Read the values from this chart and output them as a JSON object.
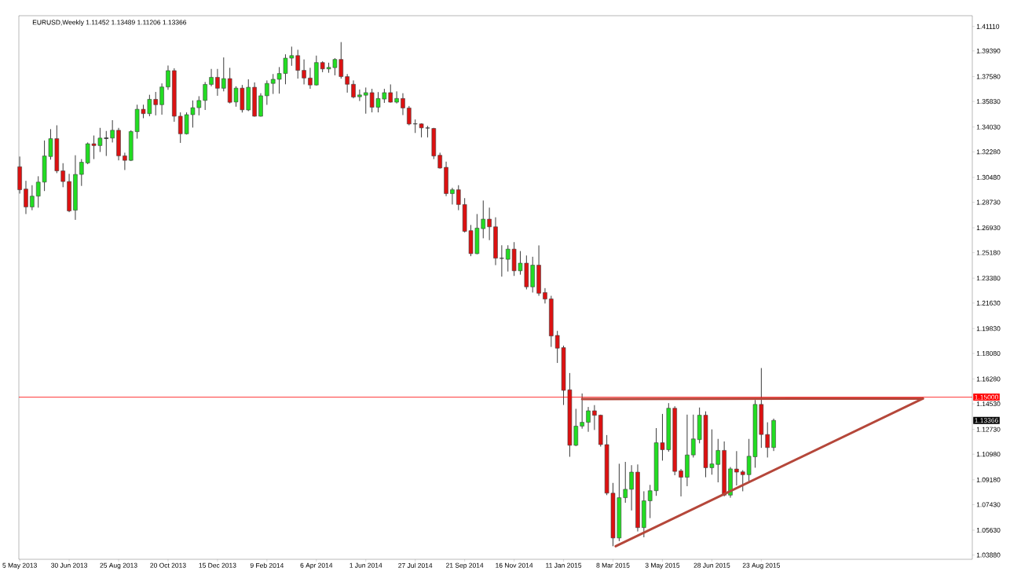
{
  "chart_data": {
    "type": "candlestick",
    "title": "EURUSD,Weekly 1.11452 1.13489 1.11206 1.13366",
    "x": [
      "2013-05-05",
      "2013-05-12",
      "2013-05-19",
      "2013-05-26",
      "2013-06-02",
      "2013-06-09",
      "2013-06-16",
      "2013-06-23",
      "2013-06-30",
      "2013-07-07",
      "2013-07-14",
      "2013-07-21",
      "2013-07-28",
      "2013-08-04",
      "2013-08-11",
      "2013-08-18",
      "2013-08-25",
      "2013-09-01",
      "2013-09-08",
      "2013-09-15",
      "2013-09-22",
      "2013-09-29",
      "2013-10-06",
      "2013-10-13",
      "2013-10-20",
      "2013-10-27",
      "2013-11-03",
      "2013-11-10",
      "2013-11-17",
      "2013-11-24",
      "2013-12-01",
      "2013-12-08",
      "2013-12-15",
      "2013-12-22",
      "2013-12-29",
      "2014-01-05",
      "2014-01-12",
      "2014-01-19",
      "2014-01-26",
      "2014-02-02",
      "2014-02-09",
      "2014-02-16",
      "2014-02-23",
      "2014-03-02",
      "2014-03-09",
      "2014-03-16",
      "2014-03-23",
      "2014-03-30",
      "2014-04-06",
      "2014-04-13",
      "2014-04-20",
      "2014-04-27",
      "2014-05-04",
      "2014-05-11",
      "2014-05-18",
      "2014-05-25",
      "2014-06-01",
      "2014-06-08",
      "2014-06-15",
      "2014-06-22",
      "2014-06-29",
      "2014-07-06",
      "2014-07-13",
      "2014-07-20",
      "2014-07-27",
      "2014-08-03",
      "2014-08-10",
      "2014-08-17",
      "2014-08-24",
      "2014-08-31",
      "2014-09-07",
      "2014-09-14",
      "2014-09-21",
      "2014-09-28",
      "2014-10-05",
      "2014-10-12",
      "2014-10-19",
      "2014-10-26",
      "2014-11-02",
      "2014-11-09",
      "2014-11-16",
      "2014-11-23",
      "2014-11-30",
      "2014-12-07",
      "2014-12-14",
      "2014-12-21",
      "2014-12-28",
      "2015-01-04",
      "2015-01-11",
      "2015-01-18",
      "2015-01-25",
      "2015-02-01",
      "2015-02-08",
      "2015-02-15",
      "2015-02-22",
      "2015-03-01",
      "2015-03-08",
      "2015-03-15",
      "2015-03-22",
      "2015-03-29",
      "2015-04-05",
      "2015-04-12",
      "2015-04-19",
      "2015-04-26",
      "2015-05-03",
      "2015-05-10",
      "2015-05-17",
      "2015-05-24",
      "2015-05-31",
      "2015-06-07",
      "2015-06-14",
      "2015-06-21",
      "2015-06-28",
      "2015-07-05",
      "2015-07-12",
      "2015-07-19",
      "2015-07-26",
      "2015-08-02",
      "2015-08-09",
      "2015-08-16",
      "2015-08-23",
      "2015-08-30",
      "2015-09-06"
    ],
    "ohlc": [
      [
        1.3123,
        1.3195,
        1.2934,
        1.2961
      ],
      [
        1.2966,
        1.3024,
        1.279,
        1.284
      ],
      [
        1.284,
        1.2993,
        1.2817,
        1.2916
      ],
      [
        1.2916,
        1.3056,
        1.2835,
        1.3015
      ],
      [
        1.3015,
        1.3308,
        1.2952,
        1.3199
      ],
      [
        1.3195,
        1.3388,
        1.3173,
        1.3321
      ],
      [
        1.3321,
        1.3415,
        1.3078,
        1.3094
      ],
      [
        1.3094,
        1.3148,
        1.2979,
        1.3019
      ],
      [
        1.3019,
        1.3073,
        1.2803,
        1.2812
      ],
      [
        1.2817,
        1.3204,
        1.2749,
        1.3069
      ],
      [
        1.3069,
        1.3177,
        1.2988,
        1.3155
      ],
      [
        1.315,
        1.3294,
        1.3141,
        1.3285
      ],
      [
        1.3285,
        1.3343,
        1.3177,
        1.3272
      ],
      [
        1.3272,
        1.3397,
        1.3227,
        1.3325
      ],
      [
        1.3327,
        1.3375,
        1.3199,
        1.3321
      ],
      [
        1.3325,
        1.3451,
        1.3294,
        1.338
      ],
      [
        1.338,
        1.3397,
        1.3168,
        1.32
      ],
      [
        1.32,
        1.3222,
        1.31,
        1.3168
      ],
      [
        1.3168,
        1.338,
        1.3163,
        1.3371
      ],
      [
        1.337,
        1.356,
        1.3321,
        1.3528
      ],
      [
        1.3528,
        1.356,
        1.3465,
        1.3497
      ],
      [
        1.3497,
        1.363,
        1.3479,
        1.3598
      ],
      [
        1.3598,
        1.365,
        1.3485,
        1.356
      ],
      [
        1.356,
        1.371,
        1.349,
        1.3685
      ],
      [
        1.3685,
        1.3836,
        1.3665,
        1.38
      ],
      [
        1.38,
        1.3817,
        1.344,
        1.3479
      ],
      [
        1.3479,
        1.3506,
        1.3291,
        1.3355
      ],
      [
        1.3355,
        1.3506,
        1.335,
        1.349
      ],
      [
        1.349,
        1.359,
        1.3399,
        1.3539
      ],
      [
        1.3539,
        1.362,
        1.3485,
        1.359
      ],
      [
        1.359,
        1.372,
        1.3523,
        1.3703
      ],
      [
        1.3703,
        1.3812,
        1.369,
        1.3753
      ],
      [
        1.3753,
        1.3812,
        1.3623,
        1.3676
      ],
      [
        1.3676,
        1.3893,
        1.3654,
        1.3744
      ],
      [
        1.3744,
        1.382,
        1.3569,
        1.3577
      ],
      [
        1.3579,
        1.369,
        1.3546,
        1.3677
      ],
      [
        1.3677,
        1.3699,
        1.3505,
        1.3524
      ],
      [
        1.3523,
        1.3739,
        1.3515,
        1.3683
      ],
      [
        1.3683,
        1.3717,
        1.3476,
        1.3479
      ],
      [
        1.3479,
        1.3641,
        1.3476,
        1.3623
      ],
      [
        1.3623,
        1.3731,
        1.3559,
        1.371
      ],
      [
        1.371,
        1.3776,
        1.3636,
        1.3739
      ],
      [
        1.3739,
        1.3825,
        1.3638,
        1.378
      ],
      [
        1.378,
        1.3915,
        1.3704,
        1.3888
      ],
      [
        1.3888,
        1.3969,
        1.3834,
        1.3906
      ],
      [
        1.3906,
        1.3947,
        1.3744,
        1.3802
      ],
      [
        1.3802,
        1.3879,
        1.3703,
        1.3748
      ],
      [
        1.3748,
        1.382,
        1.3672,
        1.3699
      ],
      [
        1.3699,
        1.3906,
        1.3695,
        1.3857
      ],
      [
        1.3857,
        1.3866,
        1.3789,
        1.3812
      ],
      [
        1.3812,
        1.3856,
        1.3785,
        1.3823
      ],
      [
        1.3821,
        1.3888,
        1.3767,
        1.3879
      ],
      [
        1.3879,
        1.4001,
        1.3744,
        1.3758
      ],
      [
        1.3758,
        1.3776,
        1.3645,
        1.3704
      ],
      [
        1.3704,
        1.3731,
        1.3605,
        1.3614
      ],
      [
        1.3616,
        1.3667,
        1.3586,
        1.3629
      ],
      [
        1.3627,
        1.3681,
        1.3497,
        1.3645
      ],
      [
        1.3645,
        1.3672,
        1.3506,
        1.3542
      ],
      [
        1.3542,
        1.3649,
        1.3506,
        1.3604
      ],
      [
        1.36,
        1.3672,
        1.3573,
        1.3645
      ],
      [
        1.3645,
        1.3703,
        1.3575,
        1.3578
      ],
      [
        1.3578,
        1.3654,
        1.3569,
        1.3604
      ],
      [
        1.3604,
        1.3641,
        1.3487,
        1.3537
      ],
      [
        1.3537,
        1.3551,
        1.3415,
        1.3424
      ],
      [
        1.3424,
        1.3456,
        1.3361,
        1.3426
      ],
      [
        1.3425,
        1.3429,
        1.333,
        1.3397
      ],
      [
        1.3397,
        1.3411,
        1.333,
        1.3395
      ],
      [
        1.3393,
        1.3397,
        1.3177,
        1.3199
      ],
      [
        1.3204,
        1.3222,
        1.311,
        1.3114
      ],
      [
        1.3119,
        1.3159,
        1.2916,
        1.2934
      ],
      [
        1.2934,
        1.2975,
        1.2857,
        1.2961
      ],
      [
        1.2961,
        1.2993,
        1.2817,
        1.2857
      ],
      [
        1.2857,
        1.2902,
        1.266,
        1.2668
      ],
      [
        1.2673,
        1.2713,
        1.2493,
        1.2511
      ],
      [
        1.2511,
        1.279,
        1.2507,
        1.2691
      ],
      [
        1.2687,
        1.2885,
        1.2619,
        1.2754
      ],
      [
        1.2754,
        1.2835,
        1.2606,
        1.27
      ],
      [
        1.27,
        1.2767,
        1.243,
        1.2479
      ],
      [
        1.2479,
        1.257,
        1.2349,
        1.2477
      ],
      [
        1.2471,
        1.257,
        1.2385,
        1.2543
      ],
      [
        1.2543,
        1.2592,
        1.2354,
        1.239
      ],
      [
        1.239,
        1.2529,
        1.2363,
        1.2444
      ],
      [
        1.2444,
        1.2498,
        1.2259,
        1.2277
      ],
      [
        1.2277,
        1.2489,
        1.2237,
        1.243
      ],
      [
        1.243,
        1.2569,
        1.2214,
        1.2232
      ],
      [
        1.2237,
        1.2268,
        1.216,
        1.2191
      ],
      [
        1.2192,
        1.2214,
        1.1854,
        1.1931
      ],
      [
        1.1935,
        1.1967,
        1.1741,
        1.1845
      ],
      [
        1.1849,
        1.1863,
        1.1445,
        1.1548
      ],
      [
        1.1552,
        1.167,
        1.108,
        1.1161
      ],
      [
        1.1161,
        1.1418,
        1.1155,
        1.1296
      ],
      [
        1.1296,
        1.1526,
        1.1278,
        1.1323
      ],
      [
        1.1323,
        1.1431,
        1.1256,
        1.1404
      ],
      [
        1.1404,
        1.1444,
        1.1269,
        1.1372
      ],
      [
        1.1373,
        1.1377,
        1.1152,
        1.1166
      ],
      [
        1.1166,
        1.1233,
        1.081,
        1.0824
      ],
      [
        1.0824,
        1.0896,
        1.045,
        1.0508
      ],
      [
        1.0508,
        1.1031,
        1.0486,
        1.0792
      ],
      [
        1.0792,
        1.1044,
        1.0756,
        1.0851
      ],
      [
        1.0851,
        1.1021,
        1.0702,
        1.0972
      ],
      [
        1.0972,
        1.1026,
        1.0554,
        1.0581
      ],
      [
        1.0581,
        1.0837,
        1.0513,
        1.077
      ],
      [
        1.077,
        1.0882,
        1.0648,
        1.0841
      ],
      [
        1.0841,
        1.1282,
        1.0805,
        1.1179
      ],
      [
        1.1179,
        1.1382,
        1.1053,
        1.113
      ],
      [
        1.113,
        1.1458,
        1.1116,
        1.1422
      ],
      [
        1.1422,
        1.1436,
        1.095,
        1.0977
      ],
      [
        1.0981,
        1.0994,
        1.0801,
        1.0936
      ],
      [
        1.0936,
        1.1377,
        1.0873,
        1.1093
      ],
      [
        1.1093,
        1.1377,
        1.1075,
        1.1206
      ],
      [
        1.1201,
        1.1427,
        1.1175,
        1.1373
      ],
      [
        1.1373,
        1.14,
        1.0936,
        1.1003
      ],
      [
        1.1003,
        1.1273,
        1.0954,
        1.103
      ],
      [
        1.1026,
        1.1206,
        1.09,
        1.1125
      ],
      [
        1.1125,
        1.1188,
        1.0801,
        1.081
      ],
      [
        1.081,
        1.1008,
        1.0792,
        1.0995
      ],
      [
        1.0994,
        1.112,
        1.0878,
        1.0972
      ],
      [
        1.0974,
        1.0986,
        1.0837,
        1.0954
      ],
      [
        1.0954,
        1.1206,
        1.0905,
        1.1084
      ],
      [
        1.108,
        1.148,
        1.1003,
        1.1449
      ],
      [
        1.1449,
        1.1705,
        1.1143,
        1.1237
      ],
      [
        1.1237,
        1.1323,
        1.1075,
        1.1145
      ],
      [
        1.11452,
        1.13489,
        1.11206,
        1.13366
      ]
    ],
    "colors": [
      "#dd1111",
      "#dd1111",
      "#22dd22",
      "#22dd22",
      "#22dd22",
      "#22dd22",
      "#dd1111",
      "#dd1111",
      "#dd1111",
      "#22dd22",
      "#22dd22",
      "#22dd22",
      "#dd1111",
      "#22dd22",
      "#000000",
      "#22dd22",
      "#dd1111",
      "#dd1111",
      "#22dd22",
      "#22dd22",
      "#dd1111",
      "#22dd22",
      "#dd1111",
      "#22dd22",
      "#22dd22",
      "#dd1111",
      "#dd1111",
      "#22dd22",
      "#22dd22",
      "#22dd22",
      "#22dd22",
      "#22dd22",
      "#dd1111",
      "#22dd22",
      "#dd1111",
      "#22dd22",
      "#dd1111",
      "#22dd22",
      "#dd1111",
      "#22dd22",
      "#22dd22",
      "#22dd22",
      "#22dd22",
      "#22dd22",
      "#22dd22",
      "#dd1111",
      "#dd1111",
      "#dd1111",
      "#22dd22",
      "#dd1111",
      "#22dd22",
      "#22dd22",
      "#dd1111",
      "#dd1111",
      "#dd1111",
      "#22dd22",
      "#22dd22",
      "#dd1111",
      "#22dd22",
      "#22dd22",
      "#dd1111",
      "#22dd22",
      "#dd1111",
      "#dd1111",
      "#000000",
      "#dd1111",
      "#000000",
      "#dd1111",
      "#dd1111",
      "#dd1111",
      "#22dd22",
      "#dd1111",
      "#dd1111",
      "#dd1111",
      "#22dd22",
      "#22dd22",
      "#dd1111",
      "#dd1111",
      "#000000",
      "#22dd22",
      "#dd1111",
      "#22dd22",
      "#dd1111",
      "#22dd22",
      "#dd1111",
      "#dd1111",
      "#dd1111",
      "#dd1111",
      "#dd1111",
      "#dd1111",
      "#22dd22",
      "#22dd22",
      "#22dd22",
      "#dd1111",
      "#dd1111",
      "#dd1111",
      "#dd1111",
      "#22dd22",
      "#22dd22",
      "#22dd22",
      "#dd1111",
      "#22dd22",
      "#22dd22",
      "#22dd22",
      "#dd1111",
      "#22dd22",
      "#dd1111",
      "#dd1111",
      "#22dd22",
      "#22dd22",
      "#22dd22",
      "#dd1111",
      "#22dd22",
      "#22dd22",
      "#dd1111",
      "#22dd22",
      "#dd1111",
      "#dd1111",
      "#22dd22",
      "#22dd22",
      "#dd1111",
      "#dd1111",
      "#22dd22"
    ],
    "series": [
      {
        "type": "line",
        "color": "#b5473a",
        "x": [
          "2015-02-01",
          "2016-02-22"
        ],
        "values": [
          1.1487,
          1.149
        ]
      },
      {
        "type": "line",
        "color": "#b5473a",
        "x": [
          "2015-03-11",
          "2016-02-22"
        ],
        "values": [
          1.045,
          1.149
        ]
      }
    ],
    "xlim": [
      "2013-05-04",
      "2016-04-18"
    ],
    "ylim": [
      1.0358,
      1.4187
    ],
    "xticks": [
      {
        "value": "2013-05-05",
        "label": "5 May 2013"
      },
      {
        "value": "2013-06-30",
        "label": "30 Jun 2013"
      },
      {
        "value": "2013-08-25",
        "label": "25 Aug 2013"
      },
      {
        "value": "2013-10-20",
        "label": "20 Oct 2013"
      },
      {
        "value": "2013-12-15",
        "label": "15 Dec 2013"
      },
      {
        "value": "2014-02-09",
        "label": "9 Feb 2014"
      },
      {
        "value": "2014-04-06",
        "label": "6 Apr 2014"
      },
      {
        "value": "2014-06-01",
        "label": "1 Jun 2014"
      },
      {
        "value": "2014-07-27",
        "label": "27 Jul 2014"
      },
      {
        "value": "2014-09-21",
        "label": "21 Sep 2014"
      },
      {
        "value": "2014-11-16",
        "label": "16 Nov 2014"
      },
      {
        "value": "2015-01-11",
        "label": "11 Jan 2015"
      },
      {
        "value": "2015-03-08",
        "label": "8 Mar 2015"
      },
      {
        "value": "2015-05-03",
        "label": "3 May 2015"
      },
      {
        "value": "2015-06-28",
        "label": "28 Jun 2015"
      },
      {
        "value": "2015-08-23",
        "label": "23 Aug 2015"
      }
    ],
    "yticks": [
      {
        "value": 1.4111,
        "label": "1.41110"
      },
      {
        "value": 1.3939,
        "label": "1.39390"
      },
      {
        "value": 1.3758,
        "label": "1.37580"
      },
      {
        "value": 1.3583,
        "label": "1.35830"
      },
      {
        "value": 1.3403,
        "label": "1.34030"
      },
      {
        "value": 1.3228,
        "label": "1.32280"
      },
      {
        "value": 1.3048,
        "label": "1.30480"
      },
      {
        "value": 1.2873,
        "label": "1.28730"
      },
      {
        "value": 1.2693,
        "label": "1.26930"
      },
      {
        "value": 1.2518,
        "label": "1.25180"
      },
      {
        "value": 1.2338,
        "label": "1.23380"
      },
      {
        "value": 1.2163,
        "label": "1.21630"
      },
      {
        "value": 1.1983,
        "label": "1.19830"
      },
      {
        "value": 1.1808,
        "label": "1.18080"
      },
      {
        "value": 1.1628,
        "label": "1.16280"
      },
      {
        "value": 1.1453,
        "label": "1.14530"
      },
      {
        "value": 1.1273,
        "label": "1.12730"
      },
      {
        "value": 1.1098,
        "label": "1.10980"
      },
      {
        "value": 1.0918,
        "label": "1.09180"
      },
      {
        "value": 1.0743,
        "label": "1.07430"
      },
      {
        "value": 1.0563,
        "label": "1.05630"
      },
      {
        "value": 1.0388,
        "label": "1.03880"
      }
    ],
    "ref_lines": [
      {
        "axis": "y",
        "value": 1.15,
        "label": "1.15000",
        "color": "#ff0000"
      }
    ],
    "annotations": [
      "1.13366"
    ]
  }
}
